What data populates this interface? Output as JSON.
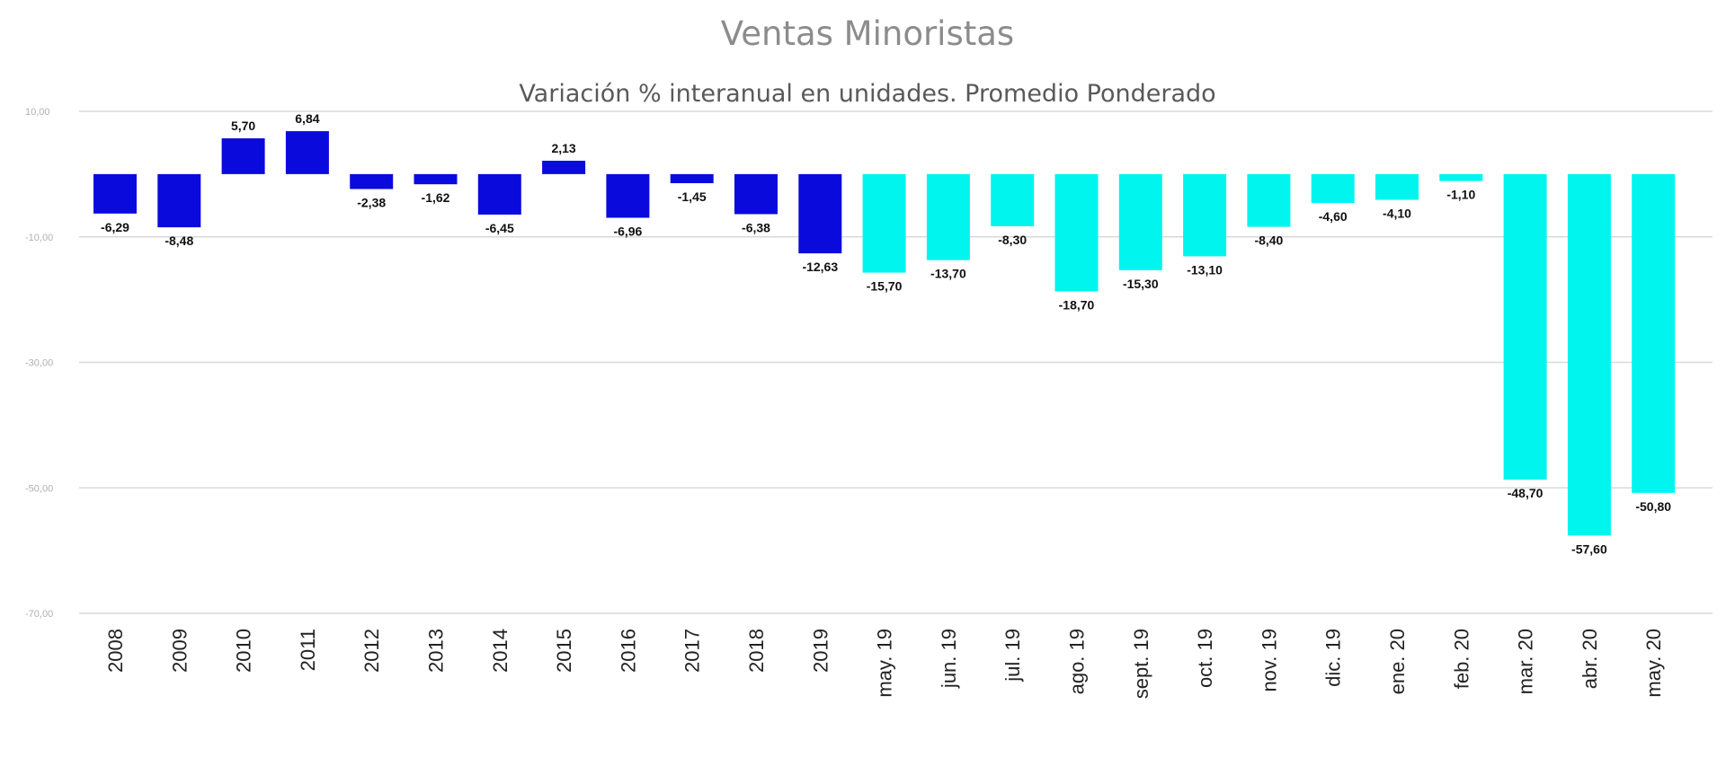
{
  "chart_data": {
    "type": "bar",
    "title": "Ventas Minoristas",
    "subtitle": "Variación % interanual en unidades. Promedio Ponderado",
    "xlabel": "",
    "ylabel": "",
    "ylim": [
      -70,
      10
    ],
    "yticks": [
      10,
      -10,
      -30,
      -50,
      -70
    ],
    "ytick_labels": [
      "10,00",
      "-10,00",
      "-30,00",
      "-50,00",
      "-70,00"
    ],
    "grid": true,
    "colors": {
      "annual": "#0a0adc",
      "monthly": "#00f5ef"
    },
    "categories": [
      "2008",
      "2009",
      "2010",
      "2011",
      "2012",
      "2013",
      "2014",
      "2015",
      "2016",
      "2017",
      "2018",
      "2019",
      "may. 19",
      "jun. 19",
      "jul. 19",
      "ago. 19",
      "sept. 19",
      "oct. 19",
      "nov. 19",
      "dic. 19",
      "ene. 20",
      "feb. 20",
      "mar. 20",
      "abr. 20",
      "may. 20"
    ],
    "values": [
      -6.29,
      -8.48,
      5.7,
      6.84,
      -2.38,
      -1.62,
      -6.45,
      2.13,
      -6.96,
      -1.45,
      -6.38,
      -12.63,
      -15.7,
      -13.7,
      -8.3,
      -18.7,
      -15.3,
      -13.1,
      -8.4,
      -4.6,
      -4.1,
      -1.1,
      -48.7,
      -57.6,
      -50.8
    ],
    "value_labels": [
      "-6,29",
      "-8,48",
      "5,70",
      "6,84",
      "-2,38",
      "-1,62",
      "-6,45",
      "2,13",
      "-6,96",
      "-1,45",
      "-6,38",
      "-12,63",
      "-15,70",
      "-13,70",
      "-8,30",
      "-18,70",
      "-15,30",
      "-13,10",
      "-8,40",
      "-4,60",
      "-4,10",
      "-1,10",
      "-48,70",
      "-57,60",
      "-50,80"
    ],
    "series_group": [
      "annual",
      "annual",
      "annual",
      "annual",
      "annual",
      "annual",
      "annual",
      "annual",
      "annual",
      "annual",
      "annual",
      "annual",
      "monthly",
      "monthly",
      "monthly",
      "monthly",
      "monthly",
      "monthly",
      "monthly",
      "monthly",
      "monthly",
      "monthly",
      "monthly",
      "monthly",
      "monthly"
    ]
  }
}
